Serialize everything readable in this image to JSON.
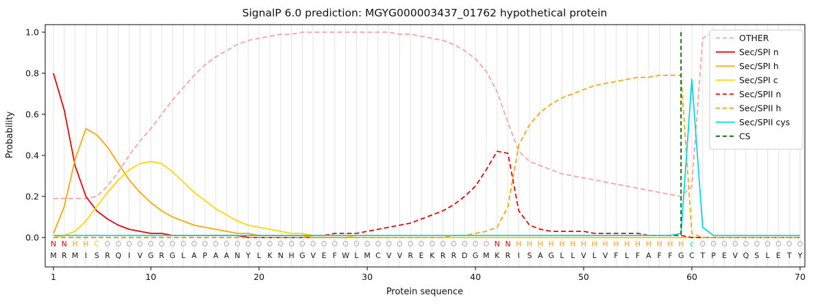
{
  "chart_data": {
    "type": "line",
    "title": "SignalP 6.0 prediction: MGYG000003437_01762 hypothetical protein",
    "xlabel": "Protein sequence",
    "ylabel": "Probability",
    "xlim": [
      0,
      71
    ],
    "ylim": [
      0,
      1.05
    ],
    "x_ticks": [
      1,
      10,
      20,
      30,
      40,
      50,
      60,
      70
    ],
    "y_ticks": [
      0.0,
      0.2,
      0.4,
      0.6,
      0.8,
      1.0
    ],
    "grid": "vertical-per-residue",
    "grid_color": "#e3e3e3",
    "legend_position": "upper right",
    "cs_position": 59,
    "sequence": "MRMISRQIVGRGLAPAANYLKNHGVEFWLMCVVREKRRDGMKRISAGLLVLVFLFAFFGCTPEVQSLETY",
    "region_labels": "NNHHCOOOOOOOOOOOOOOOOOOOOOOOOOOOOOOOOOOOONNHHHHHHHHHHHHHHHHcOOOOOOOOOO",
    "region_colors": {
      "N": "#e60000",
      "H": "#ffa500",
      "C": "#ffd700",
      "O": "#b0b0b0",
      "c": "#00d7e8"
    },
    "series": [
      {
        "name": "OTHER",
        "color": "#f5a3a3",
        "dash": true,
        "values": [
          0.19,
          0.19,
          0.19,
          0.19,
          0.2,
          0.25,
          0.32,
          0.4,
          0.47,
          0.53,
          0.6,
          0.67,
          0.73,
          0.79,
          0.84,
          0.88,
          0.91,
          0.94,
          0.96,
          0.97,
          0.98,
          0.99,
          0.99,
          1.0,
          1.0,
          1.0,
          1.0,
          1.0,
          1.0,
          1.0,
          1.0,
          1.0,
          0.99,
          0.99,
          0.98,
          0.97,
          0.96,
          0.94,
          0.91,
          0.87,
          0.81,
          0.71,
          0.56,
          0.42,
          0.37,
          0.35,
          0.33,
          0.31,
          0.3,
          0.29,
          0.28,
          0.27,
          0.26,
          0.25,
          0.24,
          0.23,
          0.22,
          0.21,
          0.2,
          0.25,
          0.97,
          1.0,
          1.0,
          1.0,
          1.0,
          1.0,
          1.0,
          1.0,
          1.0,
          1.0
        ]
      },
      {
        "name": "Sec/SPI n",
        "color": "#e60000",
        "dash": false,
        "values": [
          0.8,
          0.62,
          0.35,
          0.2,
          0.13,
          0.09,
          0.06,
          0.04,
          0.03,
          0.02,
          0.02,
          0.01,
          0.01,
          0.01,
          0.01,
          0.01,
          0.01,
          0.01,
          0,
          0,
          0,
          0,
          0,
          0,
          0,
          0,
          0,
          0,
          0,
          0,
          0,
          0,
          0,
          0,
          0,
          0,
          0,
          0,
          0,
          0,
          0,
          0,
          0,
          0,
          0,
          0,
          0,
          0,
          0,
          0,
          0,
          0,
          0,
          0,
          0,
          0,
          0,
          0,
          0,
          0,
          0,
          0,
          0,
          0,
          0,
          0,
          0,
          0,
          0,
          0
        ]
      },
      {
        "name": "Sec/SPI h",
        "color": "#ffa500",
        "dash": false,
        "values": [
          0.02,
          0.15,
          0.38,
          0.53,
          0.5,
          0.44,
          0.36,
          0.28,
          0.22,
          0.17,
          0.13,
          0.1,
          0.08,
          0.06,
          0.05,
          0.04,
          0.03,
          0.02,
          0.02,
          0.01,
          0.01,
          0.01,
          0.01,
          0.01,
          0,
          0,
          0,
          0,
          0,
          0,
          0,
          0,
          0,
          0,
          0,
          0,
          0,
          0,
          0,
          0,
          0,
          0,
          0,
          0,
          0,
          0,
          0,
          0,
          0,
          0,
          0,
          0,
          0,
          0,
          0,
          0,
          0,
          0,
          0,
          0,
          0,
          0,
          0,
          0,
          0,
          0,
          0,
          0,
          0,
          0
        ]
      },
      {
        "name": "Sec/SPI c",
        "color": "#ffd700",
        "dash": false,
        "values": [
          0,
          0.01,
          0.03,
          0.08,
          0.15,
          0.22,
          0.28,
          0.33,
          0.36,
          0.37,
          0.36,
          0.32,
          0.27,
          0.22,
          0.18,
          0.14,
          0.11,
          0.08,
          0.06,
          0.05,
          0.04,
          0.03,
          0.02,
          0.02,
          0.01,
          0.01,
          0.01,
          0.01,
          0,
          0,
          0,
          0,
          0,
          0,
          0,
          0,
          0,
          0,
          0,
          0,
          0,
          0,
          0,
          0,
          0,
          0,
          0,
          0,
          0,
          0,
          0,
          0,
          0,
          0,
          0,
          0,
          0,
          0,
          0,
          0,
          0,
          0,
          0,
          0,
          0,
          0,
          0,
          0,
          0,
          0
        ]
      },
      {
        "name": "Sec/SPII n",
        "color": "#e60000",
        "dash": true,
        "values": [
          0,
          0,
          0,
          0,
          0,
          0,
          0,
          0,
          0,
          0,
          0,
          0,
          0,
          0,
          0,
          0,
          0,
          0,
          0.01,
          0.01,
          0.01,
          0.01,
          0.01,
          0.01,
          0.01,
          0.01,
          0.02,
          0.02,
          0.02,
          0.03,
          0.04,
          0.05,
          0.06,
          0.07,
          0.09,
          0.11,
          0.13,
          0.16,
          0.2,
          0.25,
          0.33,
          0.42,
          0.41,
          0.13,
          0.06,
          0.04,
          0.03,
          0.03,
          0.03,
          0.03,
          0.02,
          0.02,
          0.02,
          0.02,
          0.02,
          0.01,
          0.01,
          0.01,
          0.01,
          0,
          0,
          0,
          0,
          0,
          0,
          0,
          0,
          0,
          0,
          0
        ]
      },
      {
        "name": "Sec/SPII h",
        "color": "#ffa500",
        "dash": true,
        "values": [
          0,
          0,
          0,
          0,
          0,
          0,
          0,
          0,
          0,
          0,
          0,
          0,
          0,
          0,
          0,
          0,
          0,
          0,
          0,
          0,
          0,
          0,
          0,
          0,
          0,
          0,
          0,
          0,
          0,
          0,
          0,
          0,
          0,
          0,
          0,
          0,
          0,
          0.01,
          0.01,
          0.02,
          0.03,
          0.05,
          0.15,
          0.45,
          0.55,
          0.61,
          0.65,
          0.68,
          0.7,
          0.72,
          0.74,
          0.75,
          0.76,
          0.77,
          0.78,
          0.78,
          0.79,
          0.79,
          0.79,
          0.02,
          0,
          0,
          0,
          0,
          0,
          0,
          0,
          0,
          0,
          0
        ]
      },
      {
        "name": "Sec/SPII cys",
        "color": "#00d7e8",
        "dash": false,
        "values": [
          0.01,
          0.01,
          0.01,
          0.01,
          0.01,
          0.01,
          0.01,
          0.01,
          0.01,
          0.01,
          0.01,
          0.01,
          0.01,
          0.01,
          0.01,
          0.01,
          0.01,
          0.01,
          0.01,
          0.01,
          0.01,
          0.01,
          0.01,
          0.01,
          0.01,
          0.01,
          0.01,
          0.01,
          0.01,
          0.01,
          0.01,
          0.01,
          0.01,
          0.01,
          0.01,
          0.01,
          0.01,
          0.01,
          0.01,
          0.01,
          0.01,
          0.01,
          0.01,
          0.01,
          0.01,
          0.01,
          0.01,
          0.01,
          0.01,
          0.01,
          0.01,
          0.01,
          0.01,
          0.01,
          0.01,
          0.01,
          0.01,
          0.01,
          0.02,
          0.77,
          0.05,
          0.01,
          0.01,
          0.01,
          0.01,
          0.01,
          0.01,
          0.01,
          0.01,
          0.01
        ]
      },
      {
        "name": "CS",
        "color": "#006400",
        "dash": true,
        "vline": 59
      }
    ],
    "legend": [
      {
        "label": "OTHER",
        "color": "#f5a3a3",
        "dash": true
      },
      {
        "label": "Sec/SPI n",
        "color": "#e60000",
        "dash": false
      },
      {
        "label": "Sec/SPI h",
        "color": "#ffa500",
        "dash": false
      },
      {
        "label": "Sec/SPI c",
        "color": "#ffd700",
        "dash": false
      },
      {
        "label": "Sec/SPII n",
        "color": "#e60000",
        "dash": true
      },
      {
        "label": "Sec/SPII h",
        "color": "#ffa500",
        "dash": true
      },
      {
        "label": "Sec/SPII cys",
        "color": "#00d7e8",
        "dash": false
      },
      {
        "label": "CS",
        "color": "#006400",
        "dash": true
      }
    ]
  }
}
